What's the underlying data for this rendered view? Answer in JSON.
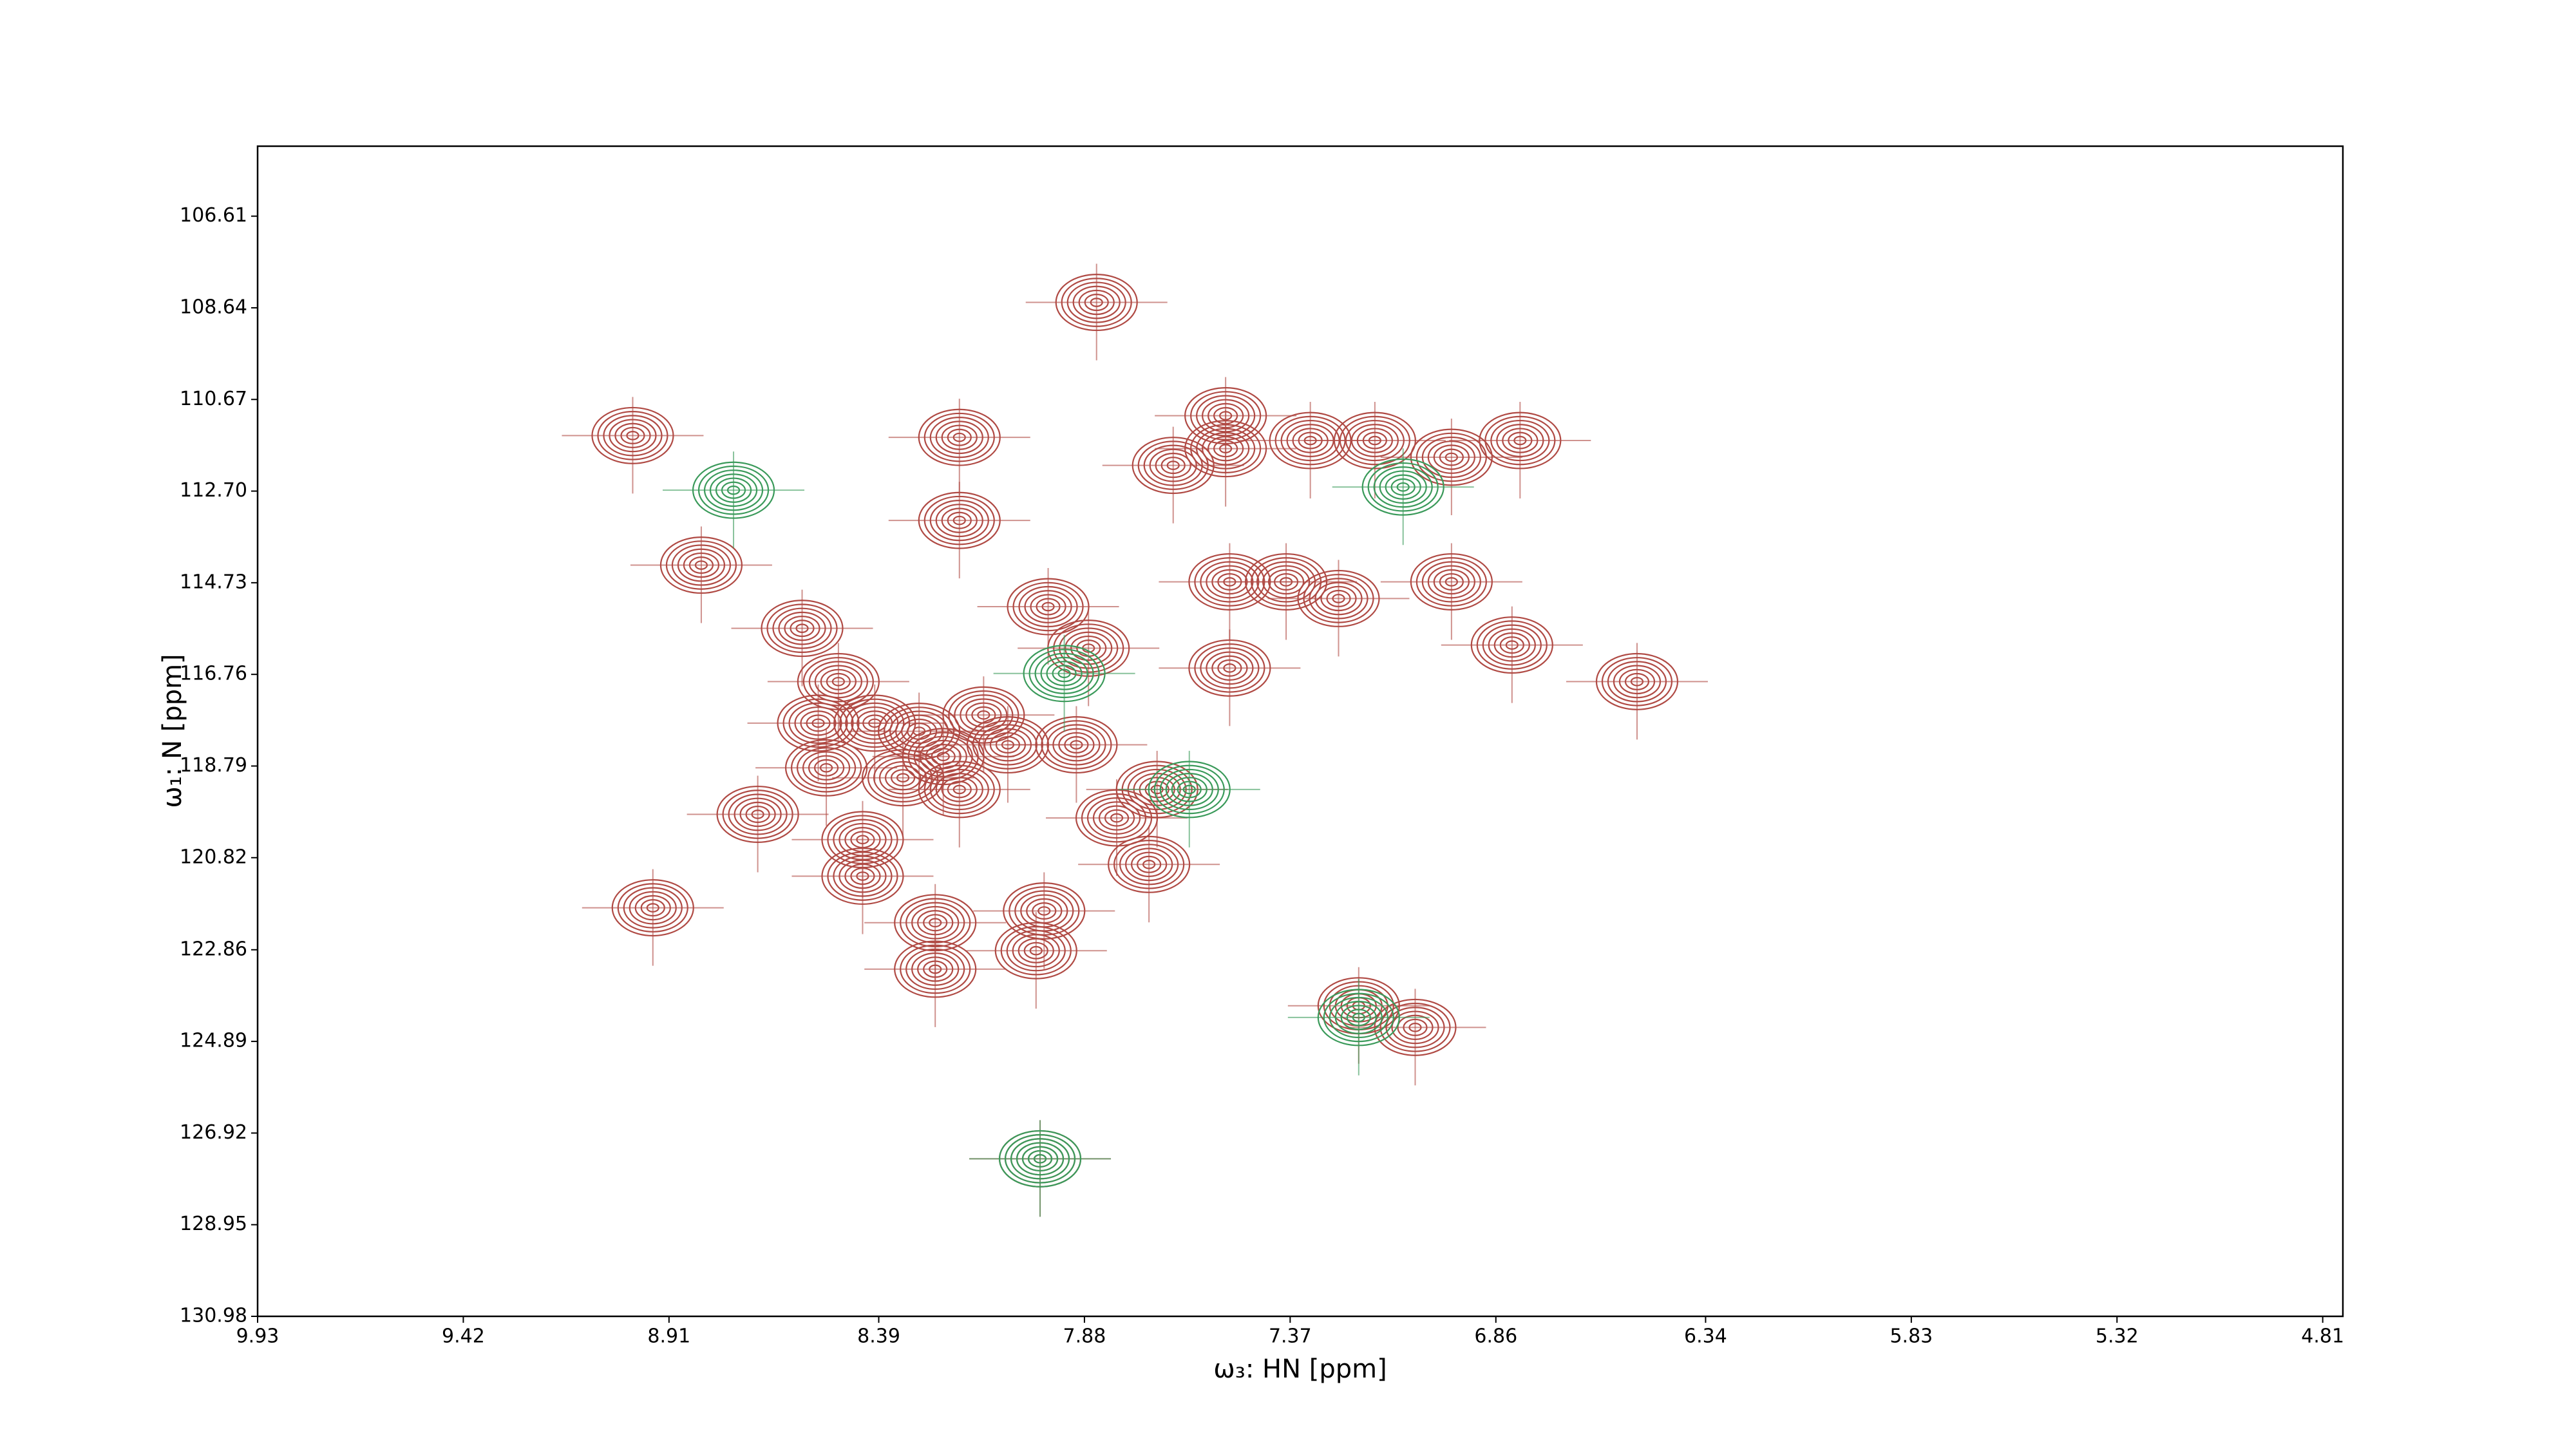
{
  "chart_data": {
    "type": "contour",
    "xlabel": "ω₃: HN [ppm]",
    "ylabel": "ω₁: N [ppm]",
    "xlim": [
      9.93,
      4.76
    ],
    "ylim": [
      130.98,
      105.06
    ],
    "xticks": [
      9.93,
      9.42,
      8.91,
      8.39,
      7.88,
      7.37,
      6.86,
      6.34,
      5.83,
      5.32,
      4.81
    ],
    "yticks": [
      106.61,
      108.64,
      110.67,
      {
        "value": 112.7,
        "label": "112.70"
      },
      114.73,
      116.76,
      118.79,
      120.82,
      122.86,
      124.89,
      126.92,
      128.95,
      130.98
    ],
    "series": [
      {
        "color": "#b04a44",
        "x": [
          9.0,
          8.83,
          8.58,
          8.49,
          8.54,
          8.4,
          8.52,
          8.69,
          8.43,
          8.43,
          8.95,
          8.29,
          8.33,
          8.23,
          8.19,
          8.13,
          8.07,
          7.97,
          7.87,
          7.9,
          7.8,
          7.7,
          7.72,
          8.25,
          8.25,
          7.98,
          8.0,
          7.85,
          8.19,
          8.19,
          7.66,
          7.53,
          7.53,
          7.32,
          7.16,
          6.97,
          6.8,
          7.52,
          7.38,
          7.25,
          6.97,
          6.82,
          7.52,
          6.51,
          7.2,
          7.06,
          7.99
        ],
        "values": [
          111.47,
          114.34,
          115.74,
          116.92,
          117.84,
          117.84,
          118.83,
          119.86,
          120.42,
          121.23,
          121.93,
          118.02,
          119.05,
          118.58,
          119.31,
          117.66,
          118.32,
          115.26,
          116.18,
          118.32,
          119.94,
          119.31,
          120.97,
          122.26,
          123.29,
          122.0,
          122.88,
          108.52,
          111.51,
          113.35,
          112.13,
          111.03,
          111.76,
          111.58,
          111.58,
          111.95,
          111.58,
          114.71,
          114.71,
          115.08,
          114.71,
          116.11,
          116.62,
          116.92,
          124.1,
          124.58,
          127.49
        ]
      },
      {
        "color": "#3a9a5a",
        "x": [
          8.75,
          7.93,
          7.62,
          7.09,
          7.2,
          7.99
        ],
        "values": [
          112.68,
          116.74,
          119.31,
          112.61,
          124.36,
          127.49
        ]
      }
    ]
  }
}
